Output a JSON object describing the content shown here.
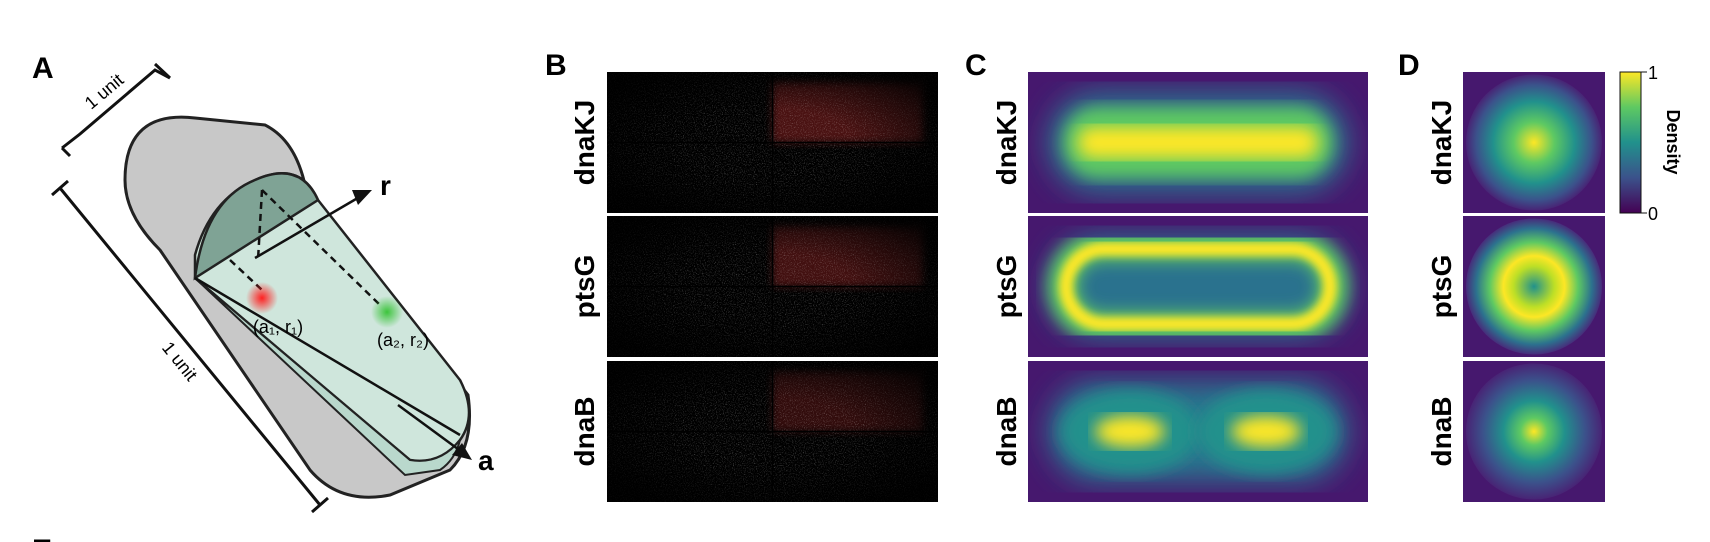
{
  "panels": {
    "A": {
      "label": "A",
      "length_label": "1 unit",
      "width_label": "1 unit",
      "axis_r": "r",
      "axis_a": "a",
      "point_1": "(a₁, r₁)",
      "point_2": "(a₂, r₂)"
    },
    "B": {
      "label": "B",
      "rows": [
        "dnaKJ",
        "ptsG",
        "dnaB"
      ]
    },
    "C": {
      "label": "C",
      "rows": [
        "dnaKJ",
        "ptsG",
        "dnaB"
      ]
    },
    "D": {
      "label": "D",
      "rows": [
        "dnaKJ",
        "ptsG",
        "dnaB"
      ],
      "colorbar": {
        "label": "Density",
        "max": "1",
        "min": "0"
      }
    },
    "E": {
      "label": "E"
    }
  }
}
